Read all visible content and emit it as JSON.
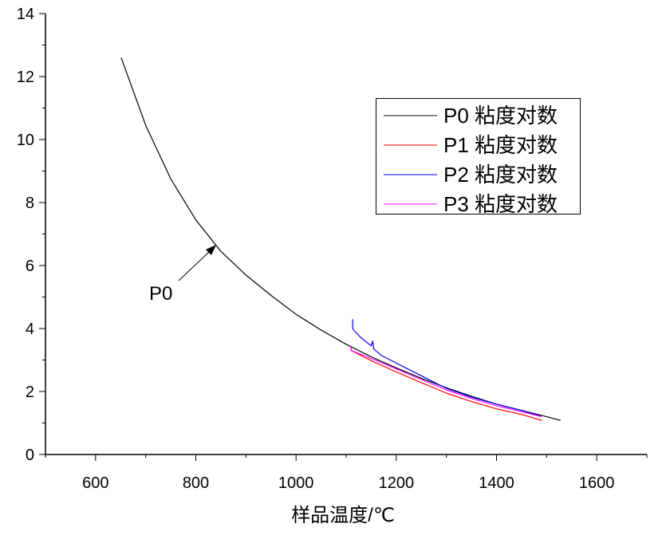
{
  "chart_data": {
    "type": "line",
    "title": "",
    "xlabel": "样品温度/℃",
    "ylabel": "",
    "xlim": [
      500,
      1700
    ],
    "ylim": [
      0,
      14
    ],
    "xticks": [
      600,
      800,
      1000,
      1200,
      1400,
      1600
    ],
    "yticks": [
      0,
      2,
      4,
      6,
      8,
      10,
      12,
      14
    ],
    "grid": false,
    "legend_position": "top-right",
    "annotation": {
      "text": "P0",
      "points_to": [
        839,
        6.6
      ]
    },
    "series": [
      {
        "name": "P0 粘度对数",
        "color": "#000000",
        "points": [
          [
            651,
            12.6
          ],
          [
            700,
            10.45
          ],
          [
            750,
            8.75
          ],
          [
            800,
            7.45
          ],
          [
            850,
            6.45
          ],
          [
            900,
            5.7
          ],
          [
            950,
            5.05
          ],
          [
            1000,
            4.45
          ],
          [
            1050,
            3.95
          ],
          [
            1100,
            3.5
          ],
          [
            1150,
            3.1
          ],
          [
            1200,
            2.75
          ],
          [
            1250,
            2.42
          ],
          [
            1300,
            2.12
          ],
          [
            1350,
            1.85
          ],
          [
            1400,
            1.6
          ],
          [
            1450,
            1.4
          ],
          [
            1500,
            1.2
          ],
          [
            1528,
            1.08
          ]
        ]
      },
      {
        "name": "P1 粘度对数",
        "color": "#ff0000",
        "points": [
          [
            1109,
            3.45
          ],
          [
            1110,
            3.3
          ],
          [
            1150,
            2.98
          ],
          [
            1200,
            2.62
          ],
          [
            1250,
            2.28
          ],
          [
            1300,
            1.95
          ],
          [
            1350,
            1.68
          ],
          [
            1400,
            1.45
          ],
          [
            1450,
            1.27
          ],
          [
            1491,
            1.08
          ]
        ]
      },
      {
        "name": "P2 粘度对数",
        "color": "#0000ff",
        "points": [
          [
            1113,
            4.3
          ],
          [
            1113,
            4.0
          ],
          [
            1115,
            3.95
          ],
          [
            1130,
            3.7
          ],
          [
            1150,
            3.45
          ],
          [
            1153,
            3.6
          ],
          [
            1155,
            3.35
          ],
          [
            1170,
            3.15
          ],
          [
            1200,
            2.9
          ],
          [
            1250,
            2.5
          ],
          [
            1300,
            2.1
          ],
          [
            1350,
            1.82
          ],
          [
            1400,
            1.6
          ],
          [
            1450,
            1.4
          ],
          [
            1488,
            1.22
          ]
        ]
      },
      {
        "name": "P3 粘度对数",
        "color": "#ff00ff",
        "points": [
          [
            1109,
            3.45
          ],
          [
            1110,
            3.3
          ],
          [
            1150,
            3.05
          ],
          [
            1200,
            2.72
          ],
          [
            1250,
            2.38
          ],
          [
            1300,
            2.05
          ],
          [
            1350,
            1.78
          ],
          [
            1400,
            1.55
          ],
          [
            1450,
            1.36
          ],
          [
            1490,
            1.2
          ]
        ]
      }
    ]
  }
}
